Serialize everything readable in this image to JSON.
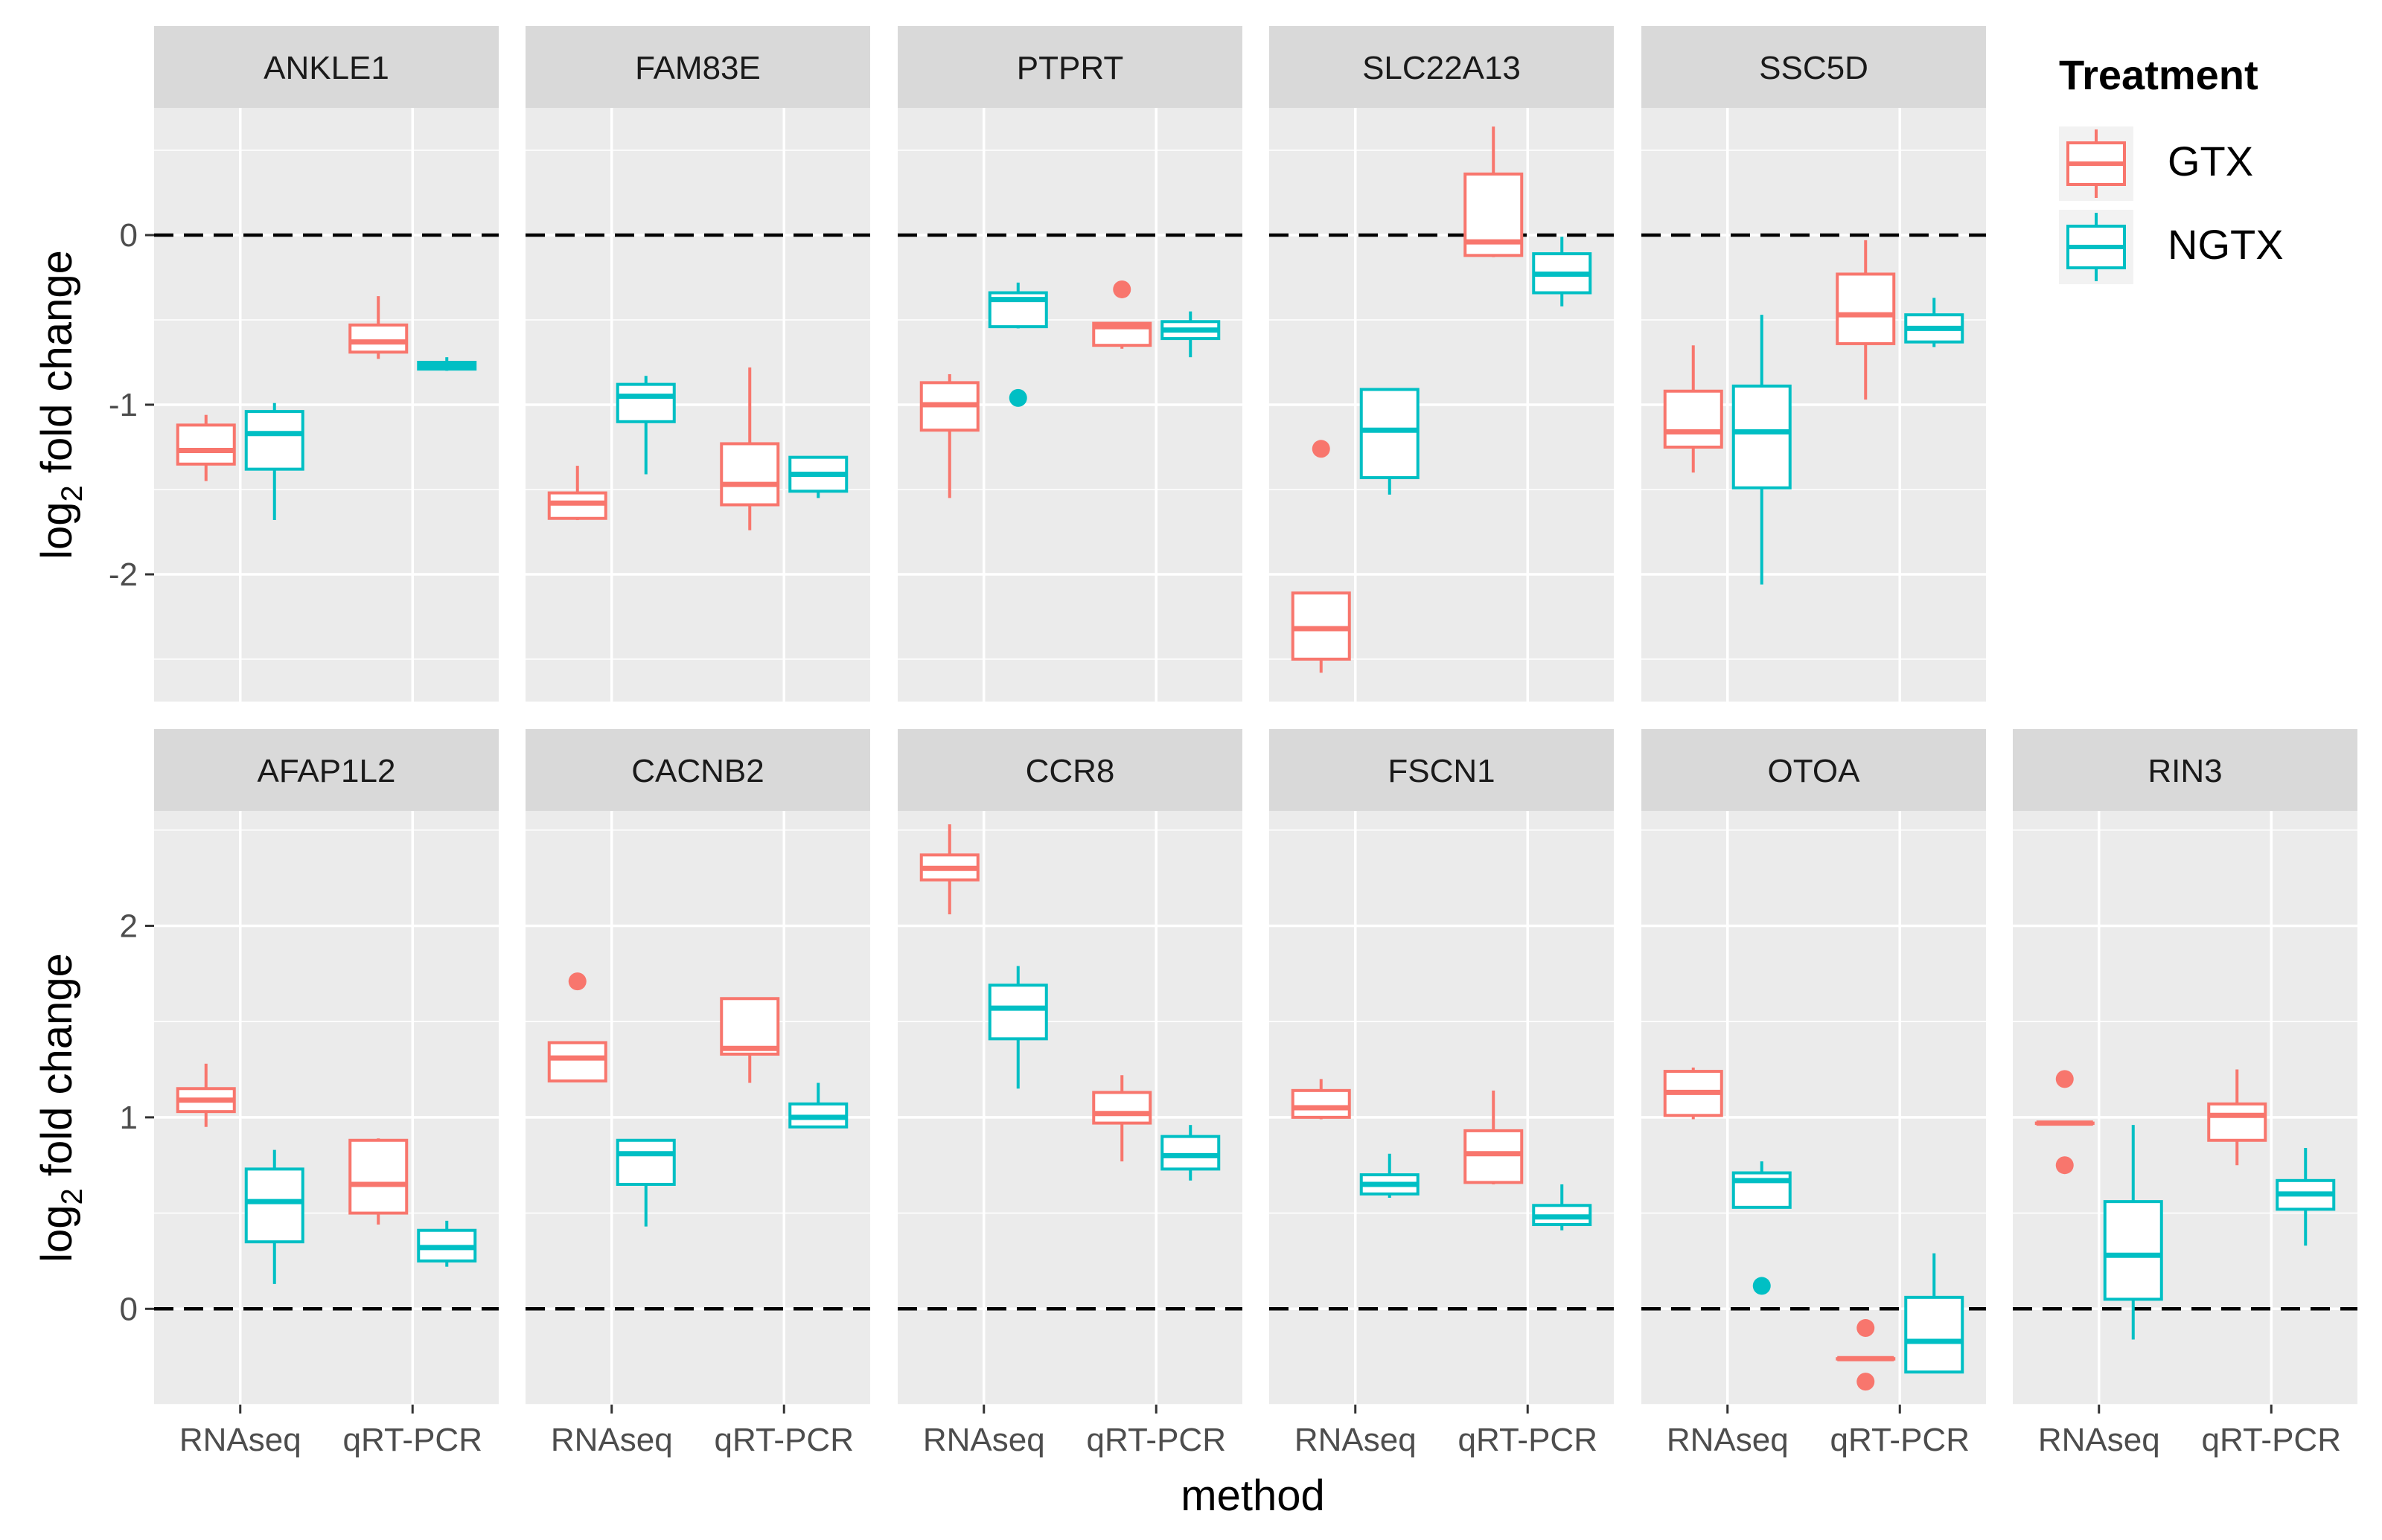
{
  "chart_data": {
    "type": "boxplot-facets",
    "xlabel": "method",
    "ylabel": {
      "prefix": "log",
      "sub": "2",
      "suffix": " fold change"
    },
    "categories": [
      "RNAseq",
      "qRT-PCR"
    ],
    "reference_line": 0,
    "colors": {
      "GTX": "#F8766D",
      "NGTX": "#00BFC4",
      "panel_bg": "#EBEBEB",
      "strip_bg": "#D9D9D9",
      "grid": "#FFFFFF"
    },
    "legend": {
      "title": "Treatment",
      "placement": "top-right",
      "entries": [
        {
          "name": "GTX",
          "color": "#F8766D"
        },
        {
          "name": "NGTX",
          "color": "#00BFC4"
        }
      ]
    },
    "rows": [
      {
        "ylim": [
          -2.75,
          0.75
        ],
        "yticks": [
          0,
          -1,
          -2
        ],
        "ytick_labels": [
          "0",
          "-1",
          "-2"
        ],
        "panels": [
          {
            "title": "ANKLE1",
            "boxes": [
              {
                "method": "RNAseq",
                "group": "GTX",
                "min": -1.45,
                "q1": -1.35,
                "median": -1.27,
                "q3": -1.12,
                "max": -1.06,
                "outliers": []
              },
              {
                "method": "RNAseq",
                "group": "NGTX",
                "min": -1.68,
                "q1": -1.38,
                "median": -1.17,
                "q3": -1.04,
                "max": -0.99,
                "outliers": []
              },
              {
                "method": "qRT-PCR",
                "group": "GTX",
                "min": -0.73,
                "q1": -0.69,
                "median": -0.63,
                "q3": -0.53,
                "max": -0.36,
                "outliers": []
              },
              {
                "method": "qRT-PCR",
                "group": "NGTX",
                "min": -0.8,
                "q1": -0.79,
                "median": -0.77,
                "q3": -0.75,
                "max": -0.72,
                "outliers": []
              }
            ]
          },
          {
            "title": "FAM83E",
            "boxes": [
              {
                "method": "RNAseq",
                "group": "GTX",
                "min": -1.68,
                "q1": -1.67,
                "median": -1.58,
                "q3": -1.52,
                "max": -1.36,
                "outliers": []
              },
              {
                "method": "RNAseq",
                "group": "NGTX",
                "min": -1.41,
                "q1": -1.1,
                "median": -0.95,
                "q3": -0.88,
                "max": -0.83,
                "outliers": []
              },
              {
                "method": "qRT-PCR",
                "group": "GTX",
                "min": -1.74,
                "q1": -1.59,
                "median": -1.47,
                "q3": -1.23,
                "max": -0.78,
                "outliers": []
              },
              {
                "method": "qRT-PCR",
                "group": "NGTX",
                "min": -1.55,
                "q1": -1.51,
                "median": -1.41,
                "q3": -1.31,
                "max": -1.31,
                "outliers": []
              }
            ]
          },
          {
            "title": "PTPRT",
            "boxes": [
              {
                "method": "RNAseq",
                "group": "GTX",
                "min": -1.55,
                "q1": -1.15,
                "median": -1.0,
                "q3": -0.87,
                "max": -0.82,
                "outliers": []
              },
              {
                "method": "RNAseq",
                "group": "NGTX",
                "min": -0.55,
                "q1": -0.54,
                "median": -0.38,
                "q3": -0.34,
                "max": -0.28,
                "outliers": [
                  -0.96
                ]
              },
              {
                "method": "qRT-PCR",
                "group": "GTX",
                "min": -0.67,
                "q1": -0.65,
                "median": -0.54,
                "q3": -0.52,
                "max": -0.52,
                "outliers": [
                  -0.32
                ]
              },
              {
                "method": "qRT-PCR",
                "group": "NGTX",
                "min": -0.72,
                "q1": -0.61,
                "median": -0.56,
                "q3": -0.51,
                "max": -0.45,
                "outliers": []
              }
            ]
          },
          {
            "title": "SLC22A13",
            "boxes": [
              {
                "method": "RNAseq",
                "group": "GTX",
                "min": -2.58,
                "q1": -2.5,
                "median": -2.32,
                "q3": -2.11,
                "max": -2.11,
                "outliers": [
                  -1.26
                ]
              },
              {
                "method": "RNAseq",
                "group": "NGTX",
                "min": -1.53,
                "q1": -1.43,
                "median": -1.15,
                "q3": -0.91,
                "max": -0.91,
                "outliers": []
              },
              {
                "method": "qRT-PCR",
                "group": "GTX",
                "min": -0.13,
                "q1": -0.12,
                "median": -0.04,
                "q3": 0.36,
                "max": 0.64,
                "outliers": []
              },
              {
                "method": "qRT-PCR",
                "group": "NGTX",
                "min": -0.42,
                "q1": -0.34,
                "median": -0.23,
                "q3": -0.11,
                "max": -0.01,
                "outliers": []
              }
            ]
          },
          {
            "title": "SSC5D",
            "boxes": [
              {
                "method": "RNAseq",
                "group": "GTX",
                "min": -1.4,
                "q1": -1.25,
                "median": -1.16,
                "q3": -0.92,
                "max": -0.65,
                "outliers": []
              },
              {
                "method": "RNAseq",
                "group": "NGTX",
                "min": -2.06,
                "q1": -1.49,
                "median": -1.16,
                "q3": -0.89,
                "max": -0.47,
                "outliers": []
              },
              {
                "method": "qRT-PCR",
                "group": "GTX",
                "min": -0.97,
                "q1": -0.64,
                "median": -0.47,
                "q3": -0.23,
                "max": -0.03,
                "outliers": []
              },
              {
                "method": "qRT-PCR",
                "group": "NGTX",
                "min": -0.66,
                "q1": -0.63,
                "median": -0.55,
                "q3": -0.47,
                "max": -0.37,
                "outliers": []
              }
            ]
          }
        ]
      },
      {
        "ylim": [
          -0.5,
          2.6
        ],
        "yticks": [
          2,
          1,
          0
        ],
        "ytick_labels": [
          "2",
          "1",
          "0"
        ],
        "panels": [
          {
            "title": "AFAP1L2",
            "boxes": [
              {
                "method": "RNAseq",
                "group": "GTX",
                "min": 0.95,
                "q1": 1.03,
                "median": 1.09,
                "q3": 1.15,
                "max": 1.28,
                "outliers": []
              },
              {
                "method": "RNAseq",
                "group": "NGTX",
                "min": 0.13,
                "q1": 0.35,
                "median": 0.56,
                "q3": 0.73,
                "max": 0.83,
                "outliers": []
              },
              {
                "method": "qRT-PCR",
                "group": "GTX",
                "min": 0.44,
                "q1": 0.5,
                "median": 0.65,
                "q3": 0.88,
                "max": 0.89,
                "outliers": []
              },
              {
                "method": "qRT-PCR",
                "group": "NGTX",
                "min": 0.22,
                "q1": 0.25,
                "median": 0.32,
                "q3": 0.41,
                "max": 0.46,
                "outliers": []
              }
            ]
          },
          {
            "title": "CACNB2",
            "boxes": [
              {
                "method": "RNAseq",
                "group": "GTX",
                "min": 1.19,
                "q1": 1.19,
                "median": 1.31,
                "q3": 1.39,
                "max": 1.39,
                "outliers": [
                  1.71
                ]
              },
              {
                "method": "RNAseq",
                "group": "NGTX",
                "min": 0.43,
                "q1": 0.65,
                "median": 0.81,
                "q3": 0.88,
                "max": 0.88,
                "outliers": []
              },
              {
                "method": "qRT-PCR",
                "group": "GTX",
                "min": 1.18,
                "q1": 1.33,
                "median": 1.36,
                "q3": 1.62,
                "max": 1.62,
                "outliers": []
              },
              {
                "method": "qRT-PCR",
                "group": "NGTX",
                "min": 0.95,
                "q1": 0.95,
                "median": 1.0,
                "q3": 1.07,
                "max": 1.18,
                "outliers": []
              }
            ]
          },
          {
            "title": "CCR8",
            "boxes": [
              {
                "method": "RNAseq",
                "group": "GTX",
                "min": 2.06,
                "q1": 2.24,
                "median": 2.3,
                "q3": 2.37,
                "max": 2.53,
                "outliers": []
              },
              {
                "method": "RNAseq",
                "group": "NGTX",
                "min": 1.15,
                "q1": 1.41,
                "median": 1.57,
                "q3": 1.69,
                "max": 1.79,
                "outliers": []
              },
              {
                "method": "qRT-PCR",
                "group": "GTX",
                "min": 0.77,
                "q1": 0.97,
                "median": 1.02,
                "q3": 1.13,
                "max": 1.22,
                "outliers": []
              },
              {
                "method": "qRT-PCR",
                "group": "NGTX",
                "min": 0.67,
                "q1": 0.73,
                "median": 0.8,
                "q3": 0.9,
                "max": 0.96,
                "outliers": []
              }
            ]
          },
          {
            "title": "FSCN1",
            "boxes": [
              {
                "method": "RNAseq",
                "group": "GTX",
                "min": 0.99,
                "q1": 1.0,
                "median": 1.05,
                "q3": 1.14,
                "max": 1.2,
                "outliers": []
              },
              {
                "method": "RNAseq",
                "group": "NGTX",
                "min": 0.58,
                "q1": 0.6,
                "median": 0.65,
                "q3": 0.7,
                "max": 0.81,
                "outliers": []
              },
              {
                "method": "qRT-PCR",
                "group": "GTX",
                "min": 0.65,
                "q1": 0.66,
                "median": 0.81,
                "q3": 0.93,
                "max": 1.14,
                "outliers": []
              },
              {
                "method": "qRT-PCR",
                "group": "NGTX",
                "min": 0.41,
                "q1": 0.44,
                "median": 0.48,
                "q3": 0.54,
                "max": 0.65,
                "outliers": []
              }
            ]
          },
          {
            "title": "OTOA",
            "boxes": [
              {
                "method": "RNAseq",
                "group": "GTX",
                "min": 0.99,
                "q1": 1.01,
                "median": 1.13,
                "q3": 1.24,
                "max": 1.26,
                "outliers": []
              },
              {
                "method": "RNAseq",
                "group": "NGTX",
                "min": 0.53,
                "q1": 0.53,
                "median": 0.67,
                "q3": 0.71,
                "max": 0.77,
                "outliers": [
                  0.12
                ]
              },
              {
                "method": "qRT-PCR",
                "group": "GTX",
                "min": -0.26,
                "q1": -0.26,
                "median": -0.26,
                "q3": -0.26,
                "max": -0.26,
                "outliers": [
                  -0.1,
                  -0.38
                ]
              },
              {
                "method": "qRT-PCR",
                "group": "NGTX",
                "min": -0.33,
                "q1": -0.33,
                "median": -0.17,
                "q3": 0.06,
                "max": 0.29,
                "outliers": []
              }
            ]
          },
          {
            "title": "RIN3",
            "boxes": [
              {
                "method": "RNAseq",
                "group": "GTX",
                "min": 0.97,
                "q1": 0.97,
                "median": 0.97,
                "q3": 0.97,
                "max": 0.97,
                "outliers": [
                  1.2,
                  0.75
                ]
              },
              {
                "method": "RNAseq",
                "group": "NGTX",
                "min": -0.16,
                "q1": 0.05,
                "median": 0.28,
                "q3": 0.56,
                "max": 0.96,
                "outliers": []
              },
              {
                "method": "qRT-PCR",
                "group": "GTX",
                "min": 0.75,
                "q1": 0.88,
                "median": 1.01,
                "q3": 1.07,
                "max": 1.25,
                "outliers": []
              },
              {
                "method": "qRT-PCR",
                "group": "NGTX",
                "min": 0.33,
                "q1": 0.52,
                "median": 0.6,
                "q3": 0.67,
                "max": 0.84,
                "outliers": []
              }
            ]
          }
        ]
      }
    ]
  }
}
